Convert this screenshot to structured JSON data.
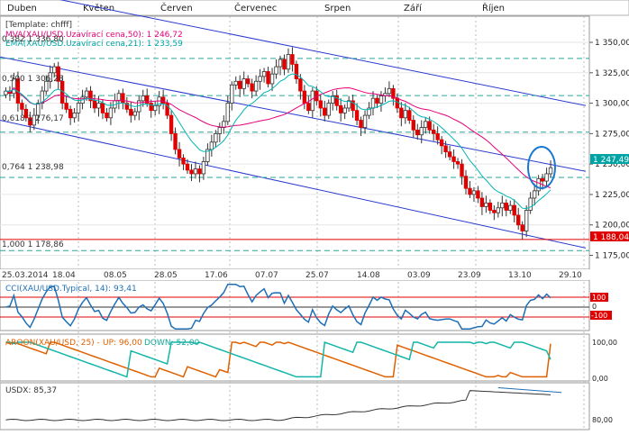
{
  "months": [
    "Duben",
    "Květen",
    "Červen",
    "Červenec",
    "Srpen",
    "Září",
    "Říjen"
  ],
  "template_label": "[Template: chfff]",
  "indicator_labels": {
    "ma": "MVA(XAU/USD.Uzavírací cena,50): 1 246,72",
    "ema": "EMA(XAU/USD.Uzavírací cena,21): 1 233,59"
  },
  "fib_levels": [
    {
      "label": "0,382 1 336,80",
      "price": 1336.8
    },
    {
      "label": "0,500 1 306,28",
      "price": 1306.28
    },
    {
      "label": "0,618 1 276,17",
      "price": 1276.17
    },
    {
      "label": "0,764 1 238,98",
      "price": 1238.98
    },
    {
      "label": "1,000 1 178,86",
      "price": 1178.86
    }
  ],
  "current_price_label": "1 247,49",
  "support_price_label": "1 188,04",
  "x_axis_dates": [
    "25.03.2014",
    "18.04",
    "08.05",
    "28.05",
    "17.06",
    "07.07",
    "25.07",
    "14.08",
    "03.09",
    "23.09",
    "13.10",
    "29.10"
  ],
  "cci_label": "CCI(XAU/USD.Typical, 14): 93,41",
  "cci_axis": [
    "100",
    "0",
    "-100"
  ],
  "aroon_label": "AROON(XAU/USD, 25) -",
  "aroon_up": "UP: 96,00",
  "aroon_down": "DOWN: 52,00",
  "aroon_axis": [
    "100,00",
    "0,00"
  ],
  "usdx_label": "USDX: 85,37",
  "usdx_axis": [
    "80,00"
  ],
  "colors": {
    "bull": "#c62828",
    "bear": "#e00000",
    "ma": "#e6007a",
    "ema": "#00b5b5",
    "channel": "#2a3ad0",
    "fib": "#2aa69a",
    "cci": "#1e6fb5",
    "aroon_up": "#e06000",
    "aroon_down": "#12b5a8",
    "support": "#e00000",
    "usdx": "#333333"
  },
  "chart_data": {
    "type": "candlestick",
    "instrument": "XAU/USD",
    "price_axis": {
      "range": [
        1165,
        1370
      ],
      "ticks": [
        1175,
        1200,
        1225,
        1250,
        1275,
        1300,
        1325,
        1350
      ]
    },
    "date_range": [
      "25.03.2014",
      "29.10"
    ],
    "closes": [
      1310,
      1308,
      1320,
      1300,
      1295,
      1288,
      1282,
      1290,
      1300,
      1310,
      1318,
      1325,
      1330,
      1318,
      1300,
      1295,
      1288,
      1292,
      1300,
      1305,
      1310,
      1302,
      1296,
      1300,
      1292,
      1288,
      1296,
      1302,
      1308,
      1300,
      1295,
      1290,
      1293,
      1302,
      1306,
      1300,
      1294,
      1298,
      1305,
      1300,
      1290,
      1275,
      1262,
      1255,
      1250,
      1245,
      1242,
      1246,
      1242,
      1252,
      1262,
      1268,
      1275,
      1280,
      1285,
      1300,
      1315,
      1318,
      1312,
      1320,
      1316,
      1310,
      1318,
      1322,
      1326,
      1316,
      1324,
      1330,
      1336,
      1328,
      1340,
      1332,
      1320,
      1310,
      1300,
      1294,
      1310,
      1302,
      1296,
      1290,
      1300,
      1306,
      1298,
      1292,
      1296,
      1302,
      1294,
      1286,
      1280,
      1290,
      1296,
      1304,
      1300,
      1306,
      1308,
      1312,
      1304,
      1296,
      1288,
      1294,
      1286,
      1278,
      1274,
      1280,
      1285,
      1278,
      1275,
      1270,
      1265,
      1260,
      1256,
      1252,
      1250,
      1240,
      1230,
      1225,
      1228,
      1222,
      1215,
      1218,
      1212,
      1210,
      1214,
      1218,
      1212,
      1216,
      1208,
      1200,
      1195,
      1212,
      1222,
      1228,
      1238,
      1236,
      1242,
      1247
    ],
    "series": [
      {
        "name": "MVA(XAU/USD.Uzavírací cena,50)",
        "last": 1246.72
      },
      {
        "name": "EMA(XAU/USD.Uzavírací cena,21)",
        "last": 1233.59
      },
      {
        "name": "CCI(XAU/USD.Typical, 14)",
        "last": 93.41
      },
      {
        "name": "AROON UP",
        "last": 96.0
      },
      {
        "name": "AROON DOWN",
        "last": 52.0
      },
      {
        "name": "USDX",
        "last": 85.37
      }
    ],
    "fibonacci": [
      {
        "ratio": 0.382,
        "price": 1336.8
      },
      {
        "ratio": 0.5,
        "price": 1306.28
      },
      {
        "ratio": 0.618,
        "price": 1276.17
      },
      {
        "ratio": 0.764,
        "price": 1238.98
      },
      {
        "ratio": 1.0,
        "price": 1178.86
      }
    ],
    "support_level": 1188.04,
    "last_price": 1247.49
  }
}
